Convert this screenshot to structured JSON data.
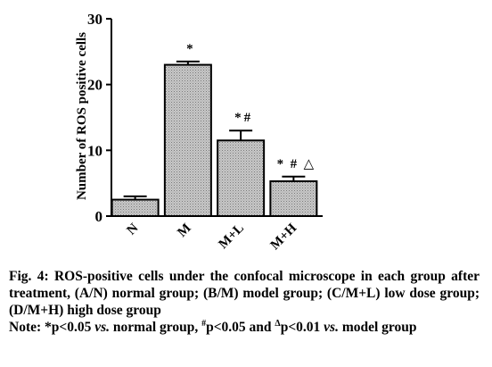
{
  "chart_data": {
    "type": "bar",
    "categories": [
      "N",
      "M",
      "M+L",
      "M+H"
    ],
    "values": [
      2.5,
      23.0,
      11.5,
      5.3
    ],
    "errors": [
      0.5,
      0.5,
      1.5,
      0.7
    ],
    "annotations": [
      "",
      "*",
      "* #",
      "*  #  △"
    ],
    "ylabel": "Number of ROS positive cells",
    "xlabel": "",
    "ylim": [
      0,
      30
    ],
    "yticks": [
      0,
      10,
      20,
      30
    ],
    "grid": false,
    "bar_fill": "#b4b4b4",
    "bar_pattern": "hatched"
  },
  "caption": {
    "title": "Fig. 4: ROS-positive cells under the confocal microscope in each group after treatment, (A/N) normal group; (B/M) model group; (C/M+L) low dose group; (D/M+H) high dose group",
    "note_prefix": "Note: *p<0.05 ",
    "vs1": "vs.",
    "note_mid1": " normal group, ",
    "sup_hash": "#",
    "note_mid2": "p<0.05 and ",
    "sup_tri": "Δ",
    "note_mid3": "p<0.01 ",
    "vs2": "vs.",
    "note_end": " model group"
  }
}
